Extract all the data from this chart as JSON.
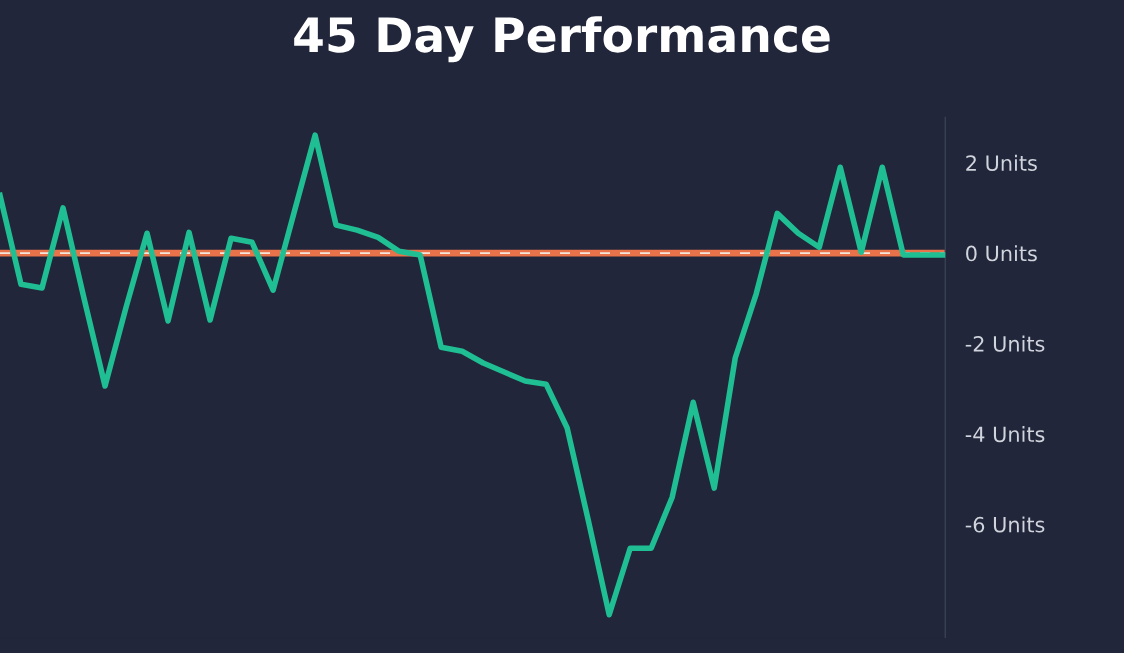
{
  "chart_data": {
    "type": "line",
    "title": "45 Day Performance",
    "categories": [
      null,
      null,
      null,
      null,
      null,
      null,
      null,
      null,
      null,
      null,
      null,
      null,
      null,
      null,
      null,
      null,
      null,
      null,
      null,
      null,
      null,
      null,
      null,
      null,
      null,
      null,
      null,
      null,
      null,
      null,
      null,
      null,
      null,
      null,
      null,
      null,
      null,
      null,
      null,
      null,
      null,
      null,
      null,
      null,
      null,
      null
    ],
    "series": [
      {
        "color": "#1fbf93",
        "values": [
          1.28,
          -0.69,
          -0.77,
          1.0,
          -1.0,
          -2.94,
          -1.2,
          0.44,
          -1.5,
          0.46,
          -1.48,
          0.33,
          0.24,
          -0.82,
          0.9,
          2.61,
          0.62,
          0.51,
          0.35,
          0.04,
          -0.04,
          -2.08,
          -2.17,
          -2.43,
          -2.63,
          -2.83,
          -2.9,
          -3.87,
          -5.9,
          -8.0,
          -6.53,
          -6.53,
          -5.4,
          -3.3,
          -5.2,
          -2.32,
          -0.9,
          0.88,
          0.44,
          0.13,
          1.9,
          0.02,
          1.9,
          -0.04,
          -0.04,
          -0.04
        ]
      }
    ],
    "ylim": [
      -8.5,
      3.0
    ],
    "yticks": [
      {
        "value": 2,
        "label": "2 Units"
      },
      {
        "value": 0,
        "label": "0 Units"
      },
      {
        "value": -2,
        "label": "-2 Units"
      },
      {
        "value": -4,
        "label": "-4 Units"
      },
      {
        "value": -6,
        "label": "-6 Units"
      }
    ],
    "ref_lines": [
      {
        "axis": "y",
        "value": 0,
        "color": "#e8734a",
        "line_style": "solid"
      },
      {
        "axis": "y",
        "value": 0,
        "color": "#f4e6dc",
        "line_style": "dashed"
      }
    ],
    "grid": false,
    "legend": false,
    "marker": "none",
    "line_style": "solid"
  }
}
